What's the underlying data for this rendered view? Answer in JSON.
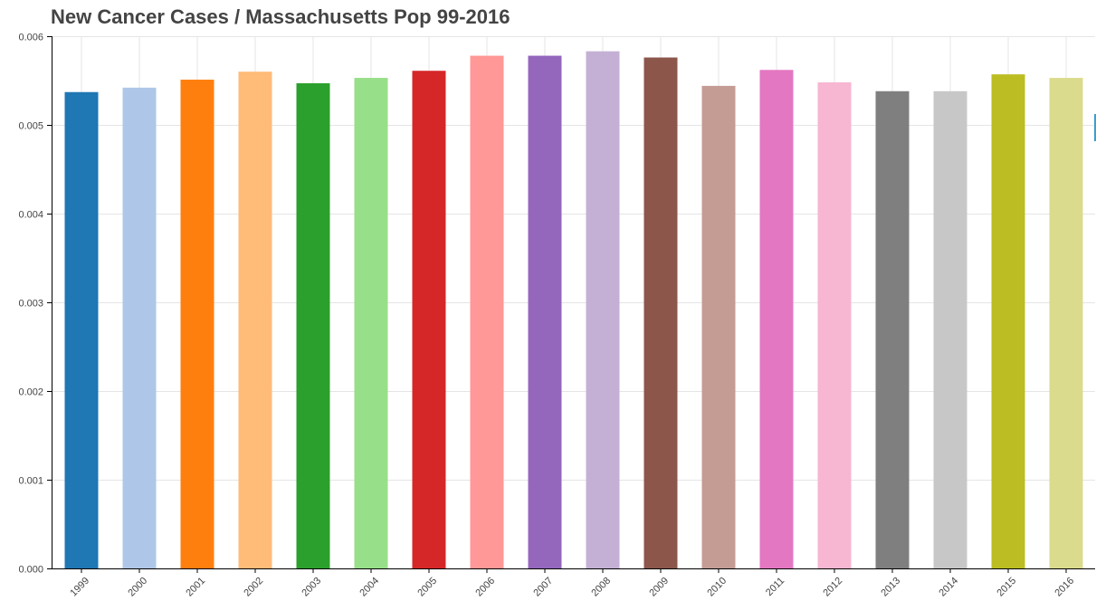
{
  "chart_data": {
    "type": "bar",
    "title": "New Cancer Cases / Massachusetts Pop 99-2016",
    "xlabel": "",
    "ylabel": "",
    "categories": [
      "1999",
      "2000",
      "2001",
      "2002",
      "2003",
      "2004",
      "2005",
      "2006",
      "2007",
      "2008",
      "2009",
      "2010",
      "2011",
      "2012",
      "2013",
      "2014",
      "2015",
      "2016"
    ],
    "values": [
      0.00537,
      0.00542,
      0.00551,
      0.0056,
      0.00547,
      0.00553,
      0.00561,
      0.00578,
      0.00578,
      0.00583,
      0.00576,
      0.00544,
      0.00562,
      0.00548,
      0.00538,
      0.00538,
      0.00557,
      0.00553
    ],
    "colors": [
      "#1f77b4",
      "#aec7e8",
      "#ff7f0e",
      "#ffbb78",
      "#2ca02c",
      "#98df8a",
      "#d62728",
      "#ff9896",
      "#9467bd",
      "#c5b0d5",
      "#8c564b",
      "#c49c94",
      "#e377c2",
      "#f7b6d2",
      "#7f7f7f",
      "#c7c7c7",
      "#bcbd22",
      "#dbdb8d"
    ],
    "ylim": [
      0,
      0.006
    ],
    "yticks": [
      "0.000",
      "0.001",
      "0.002",
      "0.003",
      "0.004",
      "0.005",
      "0.006"
    ],
    "grid": true,
    "legend": "none"
  }
}
